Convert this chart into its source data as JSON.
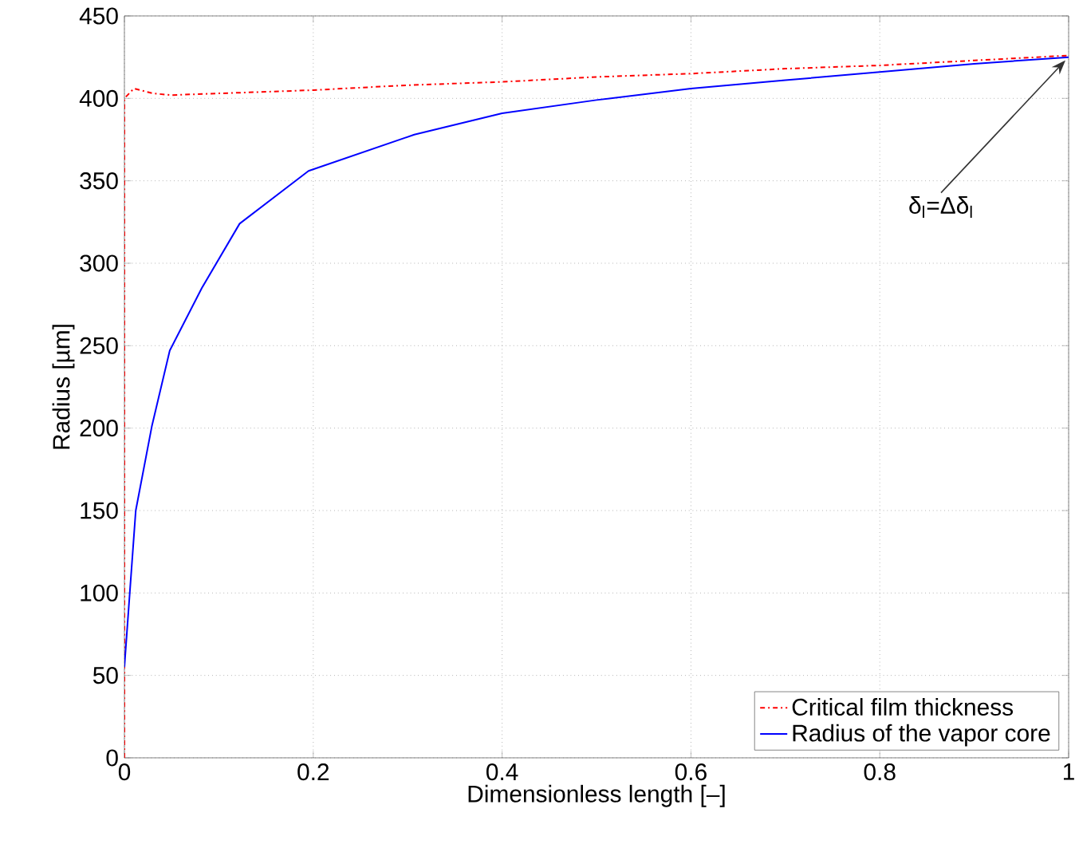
{
  "chart_data": {
    "type": "line",
    "xlabel": "Dimensionless length [–]",
    "ylabel": "Radius [µm]",
    "xlim": [
      0,
      1
    ],
    "ylim": [
      0,
      450
    ],
    "xticks": [
      0,
      0.2,
      0.4,
      0.6,
      0.8,
      1
    ],
    "yticks": [
      0,
      50,
      100,
      150,
      200,
      250,
      300,
      350,
      400,
      450
    ],
    "grid": true,
    "legend": "bottom right",
    "marker": "none",
    "series": [
      {
        "name": "Critical film thickness",
        "color": "#ff0000",
        "line_style": "dashdot",
        "x": [
          0,
          0,
          0.01,
          0.03,
          0.05,
          0.1,
          0.2,
          0.3,
          0.4,
          0.5,
          0.6,
          0.7,
          0.8,
          0.9,
          1
        ],
        "values": [
          0,
          400,
          406,
          403,
          402,
          403,
          405,
          408,
          410,
          413,
          415,
          418,
          420,
          423,
          426
        ]
      },
      {
        "name": "Radius of the vapor core",
        "color": "#0000ff",
        "line_style": "solid",
        "x": [
          0,
          0.0006,
          0.012,
          0.029,
          0.048,
          0.082,
          0.122,
          0.195,
          0.307,
          0.4,
          0.5,
          0.6,
          0.7,
          0.8,
          0.9,
          1
        ],
        "values": [
          55,
          60,
          150,
          201,
          247,
          285,
          324,
          356,
          378,
          391,
          399,
          406,
          411,
          416,
          421,
          425
        ]
      }
    ],
    "annotations": [
      {
        "text": "δ$_{l}$=Δδ$_{l}$",
        "x": 1,
        "y": 425
      }
    ]
  }
}
